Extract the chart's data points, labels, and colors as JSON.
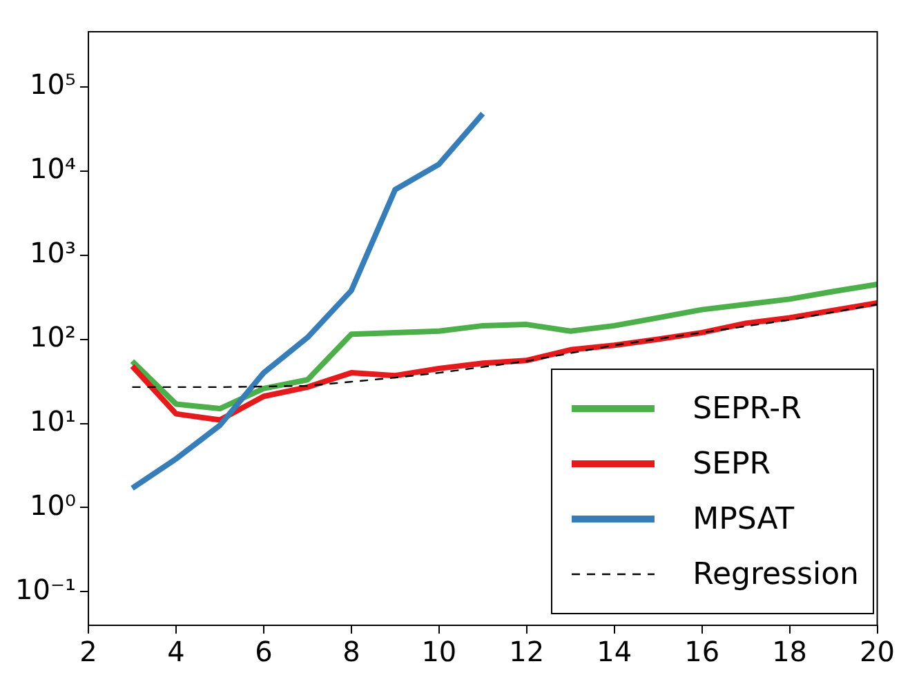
{
  "chart_data": {
    "type": "line",
    "xlim": [
      2,
      20
    ],
    "xticks": [
      2,
      4,
      6,
      8,
      10,
      12,
      14,
      16,
      18,
      20
    ],
    "log": "y",
    "ylim": [
      0.04,
      450000
    ],
    "yticks": [
      {
        "value": 0.1,
        "label": "10⁻¹"
      },
      {
        "value": 1,
        "label": "10⁰"
      },
      {
        "value": 10,
        "label": "10¹"
      },
      {
        "value": 100,
        "label": "10²"
      },
      {
        "value": 1000,
        "label": "10³"
      },
      {
        "value": 10000,
        "label": "10⁴"
      },
      {
        "value": 100000,
        "label": "10⁵"
      }
    ],
    "grid": false,
    "legend": "bottom right",
    "marker": "none",
    "series": [
      {
        "name": "SEPR-R",
        "color": "#4daf4a",
        "x": [
          3,
          4,
          5,
          6,
          7,
          8,
          9,
          10,
          11,
          12,
          13,
          14,
          15,
          16,
          17,
          18,
          19,
          20
        ],
        "values": [
          55,
          17,
          15,
          26,
          33,
          115,
          120,
          125,
          145,
          150,
          125,
          145,
          180,
          225,
          260,
          300,
          370,
          450
        ]
      },
      {
        "name": "SEPR",
        "color": "#e41a1c",
        "x": [
          3,
          4,
          5,
          6,
          7,
          8,
          9,
          10,
          11,
          12,
          13,
          14,
          15,
          16,
          17,
          18,
          19,
          20
        ],
        "values": [
          48,
          13,
          11,
          21,
          27,
          40,
          37,
          45,
          52,
          56,
          75,
          85,
          100,
          120,
          155,
          180,
          220,
          270
        ]
      },
      {
        "name": "MPSAT",
        "color": "#377eb8",
        "x": [
          3,
          4,
          5,
          6,
          7,
          8,
          9,
          10,
          11
        ],
        "values": [
          1.7,
          3.8,
          9.5,
          40,
          105,
          380,
          6000,
          12000,
          48000
        ]
      },
      {
        "name": "Regression",
        "color": "#000000",
        "line_style": "dashed",
        "x": [
          3,
          5,
          7,
          9,
          10,
          12,
          14,
          16,
          18,
          20
        ],
        "values": [
          27,
          27,
          28,
          35,
          40,
          55,
          85,
          120,
          170,
          260
        ]
      }
    ]
  }
}
